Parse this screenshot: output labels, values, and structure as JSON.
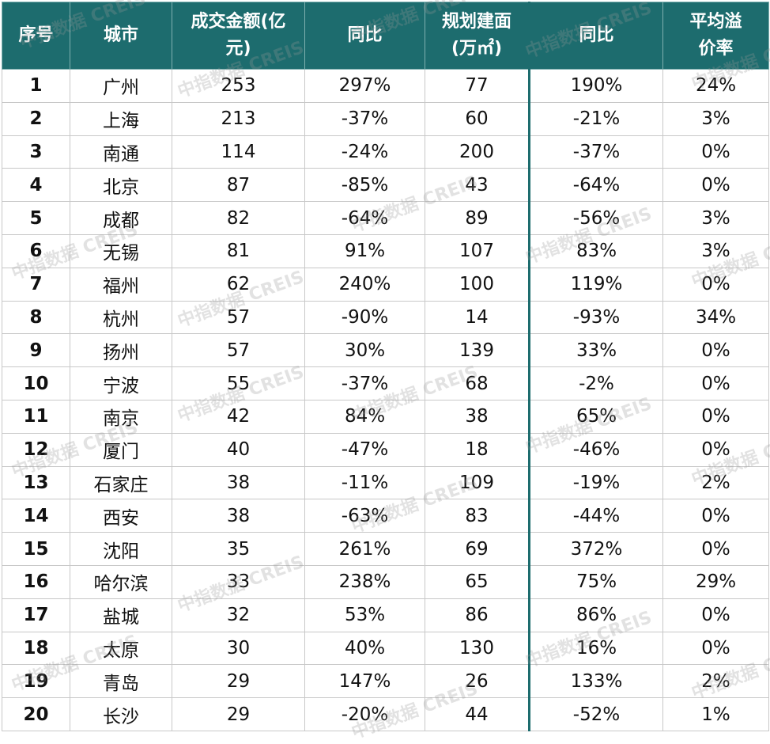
{
  "table": {
    "header": [
      "序号",
      "城市",
      "成交金额(亿元)",
      "同比",
      "规划建面(万㎡)",
      "同比",
      "平均溢价率"
    ],
    "rows": [
      [
        "1",
        "广州",
        "253",
        "297%",
        "77",
        "190%",
        "24%"
      ],
      [
        "2",
        "上海",
        "213",
        "-37%",
        "60",
        "-21%",
        "3%"
      ],
      [
        "3",
        "南通",
        "114",
        "-24%",
        "200",
        "-37%",
        "0%"
      ],
      [
        "4",
        "北京",
        "87",
        "-85%",
        "43",
        "-64%",
        "0%"
      ],
      [
        "5",
        "成都",
        "82",
        "-64%",
        "89",
        "-56%",
        "3%"
      ],
      [
        "6",
        "无锡",
        "81",
        "91%",
        "107",
        "83%",
        "3%"
      ],
      [
        "7",
        "福州",
        "62",
        "240%",
        "100",
        "119%",
        "0%"
      ],
      [
        "8",
        "杭州",
        "57",
        "-90%",
        "14",
        "-93%",
        "34%"
      ],
      [
        "9",
        "扬州",
        "57",
        "30%",
        "139",
        "33%",
        "0%"
      ],
      [
        "10",
        "宁波",
        "55",
        "-37%",
        "68",
        "-2%",
        "0%"
      ],
      [
        "11",
        "南京",
        "42",
        "84%",
        "38",
        "65%",
        "0%"
      ],
      [
        "12",
        "厦门",
        "40",
        "-47%",
        "18",
        "-46%",
        "0%"
      ],
      [
        "13",
        "石家庄",
        "38",
        "-11%",
        "109",
        "-19%",
        "2%"
      ],
      [
        "14",
        "西安",
        "38",
        "-63%",
        "83",
        "-44%",
        "0%"
      ],
      [
        "15",
        "沈阳",
        "35",
        "261%",
        "69",
        "372%",
        "0%"
      ],
      [
        "16",
        "哈尔滨",
        "33",
        "238%",
        "65",
        "75%",
        "29%"
      ],
      [
        "17",
        "盐城",
        "32",
        "53%",
        "86",
        "86%",
        "0%"
      ],
      [
        "18",
        "太原",
        "30",
        "40%",
        "130",
        "16%",
        "0%"
      ],
      [
        "19",
        "青岛",
        "29",
        "147%",
        "26",
        "133%",
        "2%"
      ],
      [
        "20",
        "长沙",
        "29",
        "-20%",
        "44",
        "-52%",
        "1%"
      ]
    ]
  },
  "watermark": "中指数据 CREIS"
}
